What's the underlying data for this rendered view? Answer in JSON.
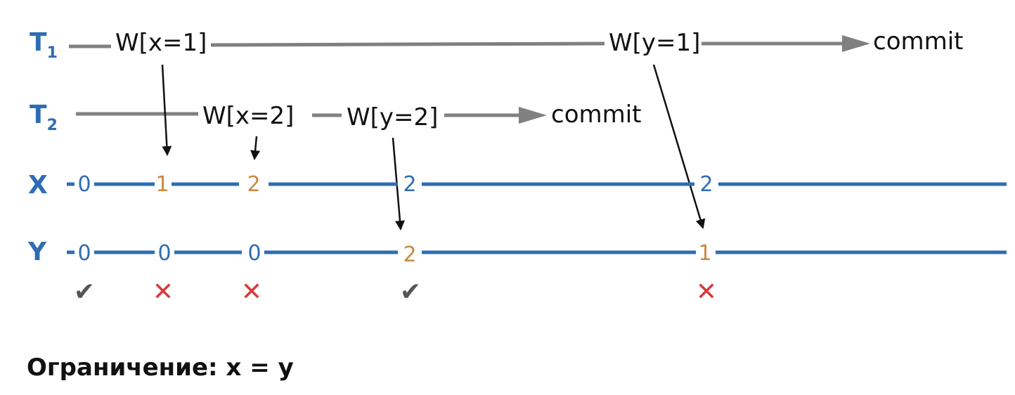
{
  "transactions": [
    {
      "label": "T",
      "sub": "1",
      "ops": [
        "W[x=1]",
        "W[y=1]"
      ],
      "commit": "commit"
    },
    {
      "label": "T",
      "sub": "2",
      "ops": [
        "W[x=2]",
        "W[y=2]"
      ],
      "commit": "commit"
    }
  ],
  "variables": [
    {
      "name": "X",
      "values": [
        "0",
        "1",
        "2",
        "2",
        "2"
      ]
    },
    {
      "name": "Y",
      "values": [
        "0",
        "0",
        "0",
        "2",
        "1"
      ]
    }
  ],
  "validity": [
    "✔",
    "✕",
    "✕",
    "✔",
    "✕"
  ],
  "colors": {
    "timeline": "#2e6db4",
    "changed_value": "#c98a45",
    "tx_line": "#808080",
    "invalid": "#d63a3a",
    "valid": "#555555"
  },
  "constraint": "Ограничение: x = y"
}
